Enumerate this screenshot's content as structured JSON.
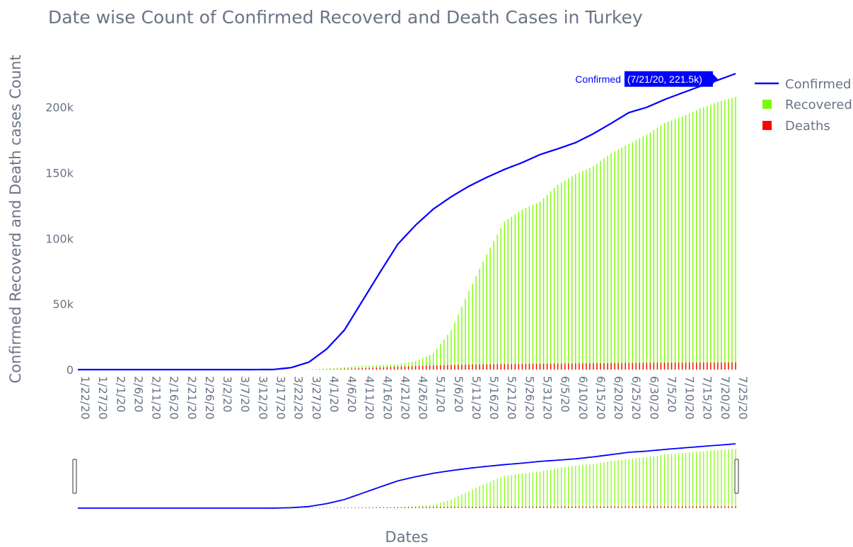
{
  "chart_data": {
    "type": "line",
    "title": "Date wise Count of Confirmed Recoverd and Death Cases in Turkey",
    "xlabel": "Dates",
    "ylabel": "Confirmed Recoverd and Death cases Count",
    "ylim": [
      0,
      230000
    ],
    "y_ticks": [
      0,
      50000,
      100000,
      150000,
      200000
    ],
    "y_tick_labels": [
      "0",
      "50k",
      "100k",
      "150k",
      "200k"
    ],
    "x_tick_labels": [
      "1/22/20",
      "1/27/20",
      "2/1/20",
      "2/6/20",
      "2/11/20",
      "2/16/20",
      "2/21/20",
      "2/26/20",
      "3/2/20",
      "3/7/20",
      "3/12/20",
      "3/17/20",
      "3/22/20",
      "3/27/20",
      "4/1/20",
      "4/6/20",
      "4/11/20",
      "4/16/20",
      "4/21/20",
      "4/26/20",
      "5/1/20",
      "5/6/20",
      "5/11/20",
      "5/16/20",
      "5/21/20",
      "5/26/20",
      "5/31/20",
      "6/5/20",
      "6/10/20",
      "6/15/20",
      "6/20/20",
      "6/25/20",
      "6/30/20",
      "7/5/20",
      "7/10/20",
      "7/15/20",
      "7/20/20",
      "7/25/20"
    ],
    "x_start": "1/22/20",
    "x_end": "7/25/20",
    "series": [
      {
        "name": "Confirmed",
        "style": "line",
        "color": "#0000ff",
        "anchors": [
          [
            "1/22/20",
            0
          ],
          [
            "3/10/20",
            0
          ],
          [
            "3/17/20",
            100
          ],
          [
            "3/22/20",
            1500
          ],
          [
            "3/27/20",
            5700
          ],
          [
            "4/1/20",
            15700
          ],
          [
            "4/6/20",
            30200
          ],
          [
            "4/11/20",
            52200
          ],
          [
            "4/16/20",
            74200
          ],
          [
            "4/21/20",
            95600
          ],
          [
            "4/26/20",
            110100
          ],
          [
            "5/1/20",
            122400
          ],
          [
            "5/6/20",
            131700
          ],
          [
            "5/11/20",
            139800
          ],
          [
            "5/16/20",
            146500
          ],
          [
            "5/21/20",
            152600
          ],
          [
            "5/26/20",
            157800
          ],
          [
            "5/31/20",
            163900
          ],
          [
            "6/5/20",
            168300
          ],
          [
            "6/10/20",
            173000
          ],
          [
            "6/15/20",
            179800
          ],
          [
            "6/20/20",
            187700
          ],
          [
            "6/25/20",
            195900
          ],
          [
            "6/30/20",
            199900
          ],
          [
            "7/5/20",
            205800
          ],
          [
            "7/10/20",
            210900
          ],
          [
            "7/15/20",
            215900
          ],
          [
            "7/20/20",
            220600
          ],
          [
            "7/25/20",
            225600
          ]
        ]
      },
      {
        "name": "Recovered",
        "style": "bar",
        "color": "#7cfc00",
        "anchors": [
          [
            "1/22/20",
            0
          ],
          [
            "3/20/20",
            0
          ],
          [
            "3/27/20",
            150
          ],
          [
            "4/1/20",
            800
          ],
          [
            "4/6/20",
            1800
          ],
          [
            "4/11/20",
            2900
          ],
          [
            "4/16/20",
            3500
          ],
          [
            "4/21/20",
            4000
          ],
          [
            "4/26/20",
            6500
          ],
          [
            "5/1/20",
            12500
          ],
          [
            "5/6/20",
            30000
          ],
          [
            "5/11/20",
            60000
          ],
          [
            "5/16/20",
            88000
          ],
          [
            "5/21/20",
            113000
          ],
          [
            "5/26/20",
            122000
          ],
          [
            "5/31/20",
            128000
          ],
          [
            "6/5/20",
            141000
          ],
          [
            "6/10/20",
            149000
          ],
          [
            "6/15/20",
            155000
          ],
          [
            "6/20/20",
            165000
          ],
          [
            "6/25/20",
            172000
          ],
          [
            "6/30/20",
            179000
          ],
          [
            "7/5/20",
            188000
          ],
          [
            "7/10/20",
            193000
          ],
          [
            "7/15/20",
            199000
          ],
          [
            "7/20/20",
            204000
          ],
          [
            "7/25/20",
            208000
          ]
        ]
      },
      {
        "name": "Deaths",
        "style": "bar",
        "color": "#ff0000",
        "anchors": [
          [
            "1/22/20",
            0
          ],
          [
            "3/16/20",
            0
          ],
          [
            "3/22/20",
            30
          ],
          [
            "3/27/20",
            90
          ],
          [
            "4/1/20",
            280
          ],
          [
            "4/6/20",
            650
          ],
          [
            "4/11/20",
            1100
          ],
          [
            "4/16/20",
            1650
          ],
          [
            "4/21/20",
            2300
          ],
          [
            "4/26/20",
            2800
          ],
          [
            "5/1/20",
            3250
          ],
          [
            "5/6/20",
            3580
          ],
          [
            "5/11/20",
            3840
          ],
          [
            "5/16/20",
            4050
          ],
          [
            "5/21/20",
            4250
          ],
          [
            "5/26/20",
            4400
          ],
          [
            "5/31/20",
            4550
          ],
          [
            "6/5/20",
            4650
          ],
          [
            "6/10/20",
            4750
          ],
          [
            "6/15/20",
            4860
          ],
          [
            "6/20/20",
            4970
          ],
          [
            "6/25/20",
            5100
          ],
          [
            "6/30/20",
            5200
          ],
          [
            "7/5/20",
            5300
          ],
          [
            "7/10/20",
            5380
          ],
          [
            "7/15/20",
            5450
          ],
          [
            "7/20/20",
            5500
          ],
          [
            "7/25/20",
            5600
          ]
        ]
      }
    ],
    "hover_label": {
      "series_name": "Confirmed",
      "text": "(7/21/20, 221.5k)",
      "x": "7/21/20",
      "y": 221500
    },
    "legend_position": "top-right",
    "range_slider": true,
    "grid": false
  }
}
